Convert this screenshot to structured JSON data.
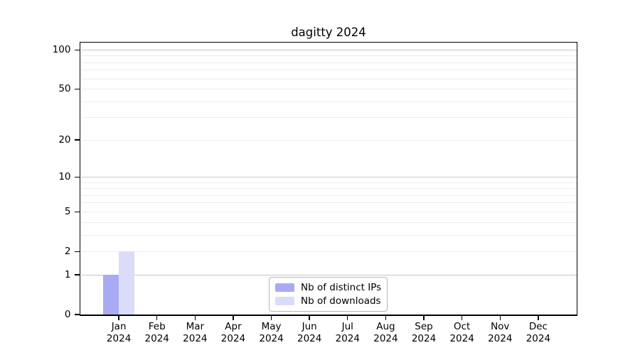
{
  "chart_data": {
    "type": "bar",
    "title": "dagitty 2024",
    "categories": [
      "Jan",
      "Feb",
      "Mar",
      "Apr",
      "May",
      "Jun",
      "Jul",
      "Aug",
      "Sep",
      "Oct",
      "Nov",
      "Dec"
    ],
    "category_year_label": "2024",
    "series": [
      {
        "name": "Nb of distinct IPs",
        "color": "#a9aaf3",
        "values": [
          1,
          0,
          0,
          0,
          0,
          0,
          0,
          0,
          0,
          0,
          0,
          0
        ]
      },
      {
        "name": "Nb of downloads",
        "color": "#dbdcf9",
        "values": [
          2,
          0,
          0,
          0,
          0,
          0,
          0,
          0,
          0,
          0,
          0,
          0
        ]
      }
    ],
    "y_axis": {
      "scale": "log10(1+x)",
      "tick_values": [
        0,
        1,
        2,
        5,
        10,
        20,
        50,
        100
      ],
      "max": 113,
      "major_grid_values": [
        1,
        10,
        100
      ],
      "minor_grid_values": [
        2,
        3,
        4,
        5,
        6,
        7,
        8,
        9,
        20,
        30,
        40,
        50,
        60,
        70,
        80,
        90
      ]
    },
    "x_axis": {
      "tick_labels_line1": [
        "Jan",
        "Feb",
        "Mar",
        "Apr",
        "May",
        "Jun",
        "Jul",
        "Aug",
        "Sep",
        "Oct",
        "Nov",
        "Dec"
      ],
      "tick_labels_line2": "2024"
    },
    "legend": {
      "position": "bottom-center-inside",
      "entries": [
        "Nb of distinct IPs",
        "Nb of downloads"
      ]
    },
    "colors": {
      "background": "#ffffff",
      "axis": "#000000",
      "major_grid": "#c6c6c6",
      "minor_grid": "#ececec",
      "legend_border": "#b5b5b5",
      "text": "#000000"
    }
  }
}
